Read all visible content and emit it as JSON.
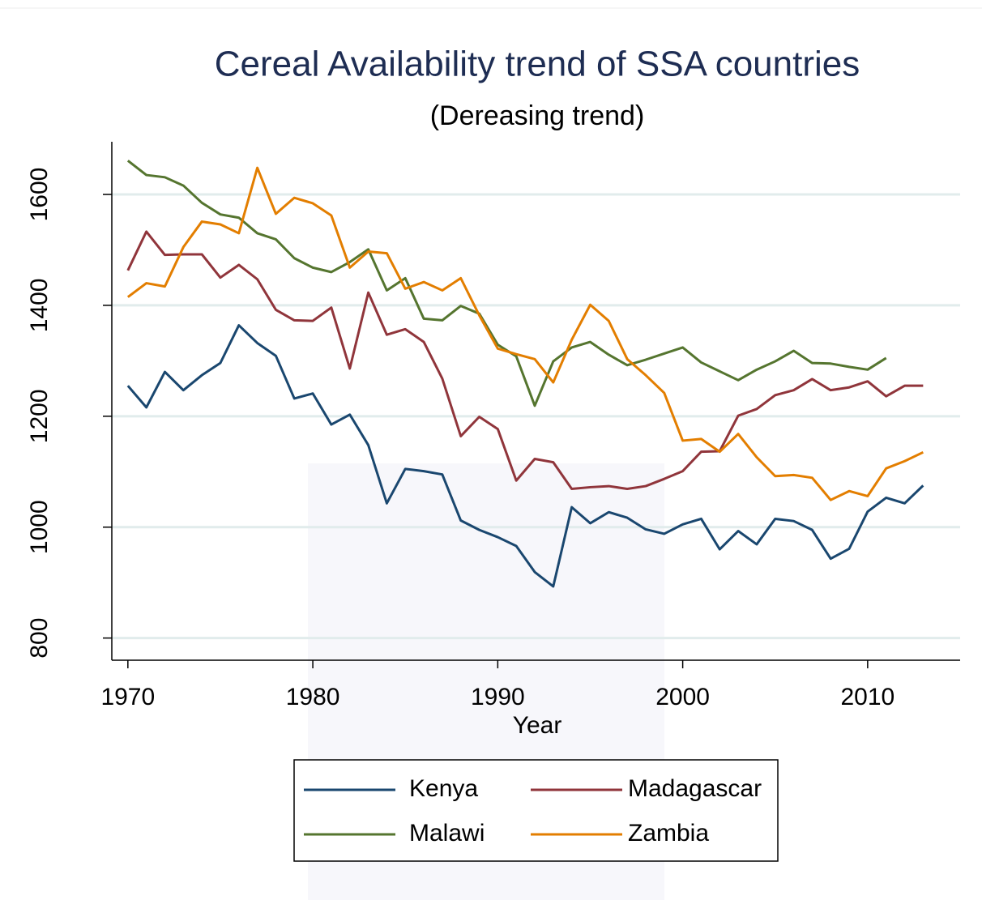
{
  "chart_data": {
    "type": "line",
    "title": "Cereal Availability trend of SSA countries",
    "subtitle": "(Dereasing trend)",
    "x_label": "Year",
    "x": [
      1970,
      1971,
      1972,
      1973,
      1974,
      1975,
      1976,
      1977,
      1978,
      1979,
      1980,
      1981,
      1982,
      1983,
      1984,
      1985,
      1986,
      1987,
      1988,
      1989,
      1990,
      1991,
      1992,
      1993,
      1994,
      1995,
      1996,
      1997,
      1998,
      1999,
      2000,
      2001,
      2002,
      2003,
      2004,
      2005,
      2006,
      2007,
      2008,
      2009,
      2010,
      2011,
      2012,
      2013
    ],
    "series": [
      {
        "name": "Kenya",
        "color": "#1a476f",
        "values": [
          1255,
          1216,
          1280,
          1247,
          1274,
          1296,
          1364,
          1332,
          1309,
          1232,
          1241,
          1185,
          1203,
          1148,
          1043,
          1105,
          1101,
          1095,
          1012,
          995,
          982,
          966,
          919,
          893,
          1036,
          1007,
          1027,
          1017,
          996,
          988,
          1005,
          1015,
          960,
          993,
          969,
          1015,
          1011,
          995,
          943,
          961,
          1028,
          1053,
          1043,
          1075
        ]
      },
      {
        "name": "Madagascar",
        "color": "#90353b",
        "values": [
          1463,
          1533,
          1491,
          1492,
          1492,
          1450,
          1473,
          1447,
          1392,
          1373,
          1372,
          1396,
          1286,
          1423,
          1347,
          1357,
          1334,
          1268,
          1164,
          1199,
          1177,
          1084,
          1123,
          1117,
          1069,
          1072,
          1074,
          1069,
          1074,
          1087,
          1101,
          1136,
          1137,
          1201,
          1213,
          1238,
          1247,
          1267,
          1247,
          1252,
          1263,
          1236,
          1255,
          1255
        ]
      },
      {
        "name": "Malawi",
        "color": "#55752f",
        "values": [
          1661,
          1635,
          1631,
          1616,
          1585,
          1564,
          1558,
          1530,
          1519,
          1485,
          1468,
          1460,
          1478,
          1501,
          1427,
          1449,
          1376,
          1373,
          1399,
          1385,
          1329,
          1308,
          1219,
          1299,
          1324,
          1334,
          1311,
          1292,
          1302,
          1313,
          1324,
          1297,
          1281,
          1265,
          1284,
          1299,
          1318,
          1296,
          1295,
          1289,
          1284,
          1305,
          null,
          null
        ]
      },
      {
        "name": "Zambia",
        "color": "#e37e00",
        "values": [
          1415,
          1440,
          1434,
          1505,
          1551,
          1546,
          1530,
          1648,
          1565,
          1594,
          1584,
          1562,
          1468,
          1497,
          1494,
          1430,
          1442,
          1427,
          1449,
          1382,
          1322,
          1312,
          1303,
          1261,
          1338,
          1401,
          1372,
          1303,
          1274,
          1242,
          1156,
          1159,
          1136,
          1168,
          1126,
          1092,
          1094,
          1089,
          1049,
          1065,
          1056,
          1106,
          1119,
          1135
        ]
      }
    ],
    "xlim": [
      1969,
      2015
    ],
    "xticks": [
      1970,
      1980,
      1990,
      2000,
      2010
    ],
    "ylim": [
      760,
      1695
    ],
    "yticks": [
      800,
      1000,
      1200,
      1400,
      1600
    ],
    "grid": true,
    "legend": "bottom"
  }
}
